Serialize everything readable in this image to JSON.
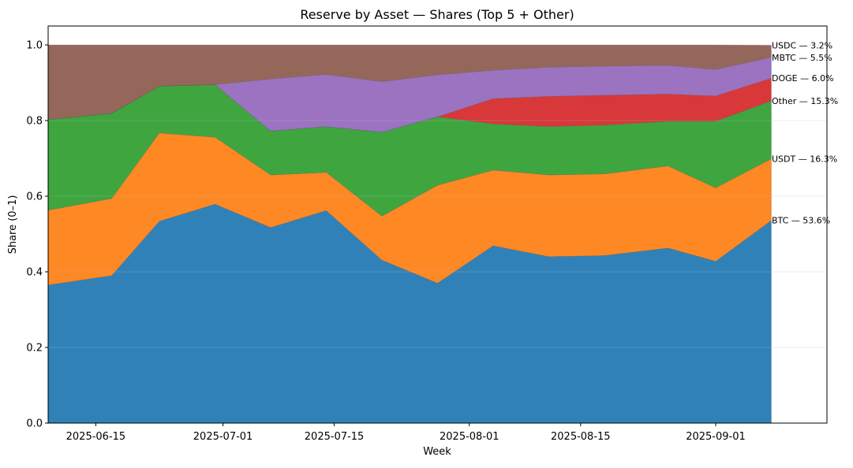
{
  "chart_data": {
    "type": "area",
    "stacked": true,
    "title": "Reserve by Asset — Shares (Top 5 + Other)",
    "xlabel": "Week",
    "ylabel": "Share (0–1)",
    "ylim": [
      0,
      1.05
    ],
    "xlim": [
      "2025-06-09",
      "2025-09-15"
    ],
    "grid": "horizontal",
    "x": [
      "2025-06-09",
      "2025-06-17",
      "2025-06-23",
      "2025-06-30",
      "2025-07-07",
      "2025-07-14",
      "2025-07-21",
      "2025-07-28",
      "2025-08-04",
      "2025-08-11",
      "2025-08-18",
      "2025-08-26",
      "2025-09-01",
      "2025-09-08"
    ],
    "x_ticks": [
      "2025-06-15",
      "2025-07-01",
      "2025-07-15",
      "2025-08-01",
      "2025-08-15",
      "2025-09-01"
    ],
    "y_ticks": [
      "0.0",
      "0.2",
      "0.4",
      "0.6",
      "0.8",
      "1.0"
    ],
    "series": [
      {
        "name": "BTC",
        "color": "#3181b9",
        "label": "BTC — 53.6%",
        "values": [
          0.365,
          0.39,
          0.534,
          0.579,
          0.517,
          0.562,
          0.431,
          0.37,
          0.469,
          0.44,
          0.443,
          0.463,
          0.428,
          0.536
        ]
      },
      {
        "name": "USDT",
        "color": "#fe8823",
        "label": "USDT — 16.3%",
        "values": [
          0.198,
          0.204,
          0.233,
          0.177,
          0.139,
          0.101,
          0.116,
          0.259,
          0.2,
          0.216,
          0.216,
          0.217,
          0.194,
          0.163
        ]
      },
      {
        "name": "Other",
        "color": "#3fa63f",
        "label": "Other — 15.3%",
        "values": [
          0.24,
          0.225,
          0.124,
          0.139,
          0.116,
          0.121,
          0.222,
          0.181,
          0.122,
          0.128,
          0.129,
          0.118,
          0.176,
          0.153
        ]
      },
      {
        "name": "DOGE",
        "color": "#d8383a",
        "label": "DOGE — 6.0%",
        "values": [
          0,
          0,
          0,
          0,
          0,
          0,
          0,
          0,
          0.067,
          0.08,
          0.079,
          0.072,
          0.067,
          0.06
        ]
      },
      {
        "name": "MBTC",
        "color": "#9b73c0",
        "label": "MBTC — 5.5%",
        "values": [
          0,
          0,
          0,
          0,
          0.138,
          0.138,
          0.134,
          0.111,
          0.075,
          0.077,
          0.077,
          0.076,
          0.07,
          0.055
        ]
      },
      {
        "name": "USDC",
        "color": "#95675b",
        "label": "USDC — 3.2%",
        "values": [
          0.197,
          0.181,
          0.109,
          0.105,
          0.09,
          0.078,
          0.097,
          0.079,
          0.067,
          0.059,
          0.056,
          0.054,
          0.065,
          0.032
        ]
      }
    ]
  }
}
